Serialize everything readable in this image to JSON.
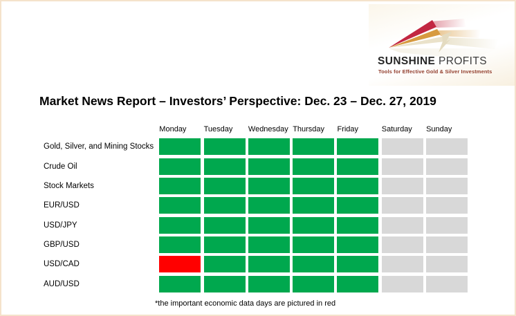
{
  "page": {
    "background": "#ffffff",
    "border_color": "#F5E2CB"
  },
  "logo": {
    "brand_primary": "SUNSHINE",
    "brand_secondary": "PROFITS",
    "tagline": "Tools for Effective Gold & Silver Investments",
    "tagline_color": "#93402F",
    "arrow_colors": {
      "red": "#C22741",
      "gold": "#D79A3F",
      "cream": "#EAE2CA"
    }
  },
  "title": "Market News Report – Investors’ Perspective: Dec. 23 – Dec. 27, 2019",
  "footnote": "*the important economic data days are pictured in red",
  "chart_data": {
    "type": "heatmap",
    "title": "Market News Report – Investors’ Perspective: Dec. 23 – Dec. 27, 2019",
    "columns": [
      "Monday",
      "Tuesday",
      "Wednesday",
      "Thursday",
      "Friday",
      "Saturday",
      "Sunday"
    ],
    "rows": [
      "Gold, Silver, and Mining Stocks",
      "Crude Oil",
      "Stock Markets",
      "EUR/USD",
      "USD/JPY",
      "GBP/USD",
      "USD/CAD",
      "AUD/USD"
    ],
    "cells": [
      [
        "green",
        "green",
        "green",
        "green",
        "green",
        "off",
        "off"
      ],
      [
        "green",
        "green",
        "green",
        "green",
        "green",
        "off",
        "off"
      ],
      [
        "green",
        "green",
        "green",
        "green",
        "green",
        "off",
        "off"
      ],
      [
        "green",
        "green",
        "green",
        "green",
        "green",
        "off",
        "off"
      ],
      [
        "green",
        "green",
        "green",
        "green",
        "green",
        "off",
        "off"
      ],
      [
        "green",
        "green",
        "green",
        "green",
        "green",
        "off",
        "off"
      ],
      [
        "red",
        "green",
        "green",
        "green",
        "green",
        "off",
        "off"
      ],
      [
        "green",
        "green",
        "green",
        "green",
        "green",
        "off",
        "off"
      ]
    ],
    "cell_colors": {
      "green": "#00A84E",
      "red": "#FF0000",
      "off": "#D8D8D8"
    },
    "legend_note": "*the important economic data days are pictured in red",
    "legend_position": "bottom"
  }
}
